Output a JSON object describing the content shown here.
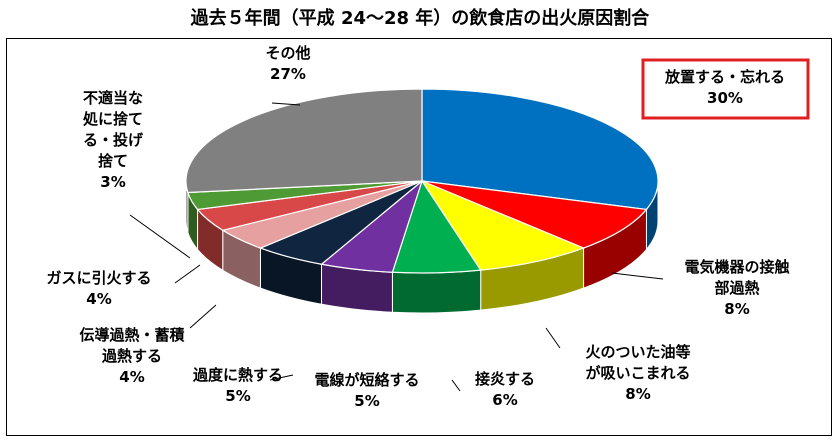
{
  "title": "過去５年間（平成 24～28 年）の飲食店の出火原因割合",
  "chart_data": {
    "type": "pie",
    "title": "過去５年間（平成 24～28 年）の飲食店の出火原因割合",
    "slices": [
      {
        "label": "放置する・忘れる",
        "value": 30,
        "color": "#0070C0",
        "highlight": "#E02020"
      },
      {
        "label": "電気機器の接触部過熱",
        "value": 8,
        "color": "#FF0000"
      },
      {
        "label": "火のついた油等が吸いこまれる",
        "value": 8,
        "color": "#FFFF00"
      },
      {
        "label": "接炎する",
        "value": 6,
        "color": "#00B050"
      },
      {
        "label": "電線が短絡する",
        "value": 5,
        "color": "#7030A0"
      },
      {
        "label": "過度に熱する",
        "value": 5,
        "color": "#0F2540"
      },
      {
        "label": "伝導過熱・蓄積過熱する",
        "value": 4,
        "color": "#E6A0A0"
      },
      {
        "label": "ガスに引火する",
        "value": 4,
        "color": "#D84848"
      },
      {
        "label": "不適当な処に捨てる・投げ捨て",
        "value": 3,
        "color": "#4E9A34"
      },
      {
        "label": "その他",
        "value": 27,
        "color": "#808080"
      }
    ],
    "value_suffix": "%"
  },
  "labels": [
    {
      "lines": [
        "放置する・忘れる",
        "30%"
      ]
    },
    {
      "lines": [
        "電気機器の接触",
        "部過熱",
        "8%"
      ]
    },
    {
      "lines": [
        "火のついた油等",
        "が吸いこまれる",
        "8%"
      ]
    },
    {
      "lines": [
        "接炎する",
        "6%"
      ]
    },
    {
      "lines": [
        "電線が短絡する",
        "5%"
      ]
    },
    {
      "lines": [
        "過度に熱する",
        "5%"
      ]
    },
    {
      "lines": [
        "伝導過熱・蓄積",
        "過熱する",
        "4%"
      ]
    },
    {
      "lines": [
        "ガスに引火する",
        "4%"
      ]
    },
    {
      "lines": [
        "不適当な",
        "処に捨て",
        "る・投げ",
        "捨て",
        "3%"
      ]
    },
    {
      "lines": [
        "その他",
        "27%"
      ]
    }
  ]
}
